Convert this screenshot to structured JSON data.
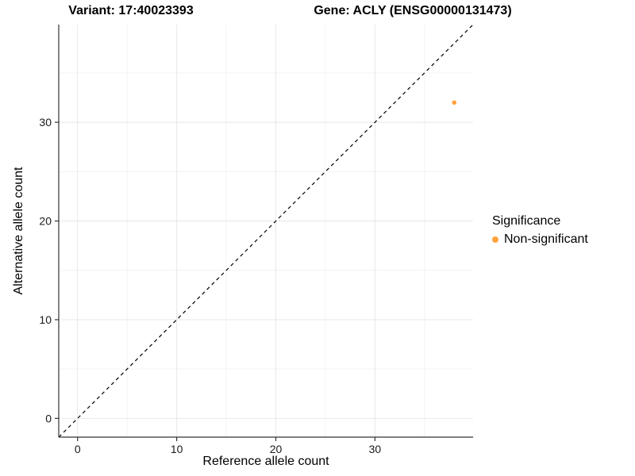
{
  "titles": {
    "variant": "Variant: 17:40023393",
    "gene": "Gene: ACLY (ENSG00000131473)"
  },
  "axes": {
    "x_label": "Reference allele count",
    "y_label": "Alternative allele count"
  },
  "legend": {
    "title": "Significance",
    "items": [
      {
        "label": "Non-significant",
        "color": "#FFA33C"
      }
    ]
  },
  "chart_data": {
    "type": "scatter",
    "title": "Variant: 17:40023393   Gene: ACLY (ENSG00000131473)",
    "xlabel": "Reference allele count",
    "ylabel": "Alternative allele count",
    "xlim": [
      -1.9,
      39.9
    ],
    "ylim": [
      -1.9,
      39.9
    ],
    "x_ticks": [
      0,
      10,
      20,
      30
    ],
    "y_ticks": [
      0,
      10,
      20,
      30
    ],
    "x_minor_ticks": [
      5,
      15,
      25,
      35
    ],
    "y_minor_ticks": [
      5,
      15,
      25,
      35
    ],
    "grid": true,
    "legend_position": "right",
    "series": [
      {
        "name": "Non-significant",
        "color": "#FFA33C",
        "points": [
          {
            "x": 38,
            "y": 32
          }
        ]
      }
    ],
    "reference_line": {
      "type": "abline",
      "slope": 1,
      "intercept": 0,
      "style": "dashed",
      "color": "#000000"
    }
  },
  "style": {
    "grid_major_color": "#E8E8E8",
    "grid_minor_color": "#F3F3F3",
    "axis_line_color": "#333333",
    "tick_label_color": "#1a1a1a",
    "point_radius": 2.8,
    "tick_font_size": 14
  }
}
